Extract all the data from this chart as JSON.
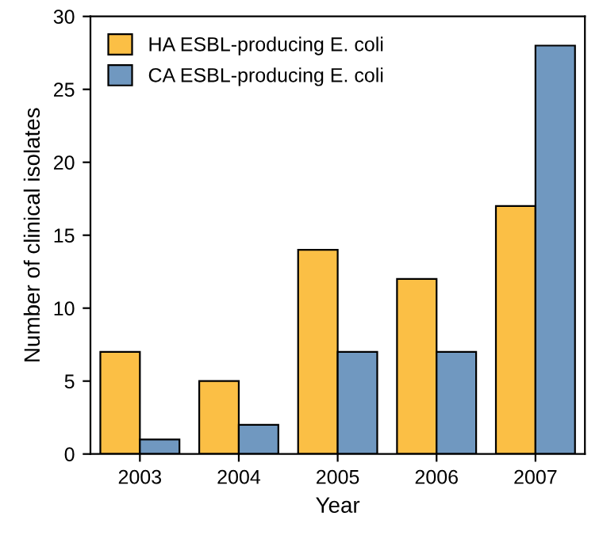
{
  "chart_data": {
    "type": "bar",
    "xlabel": "Year",
    "ylabel": "Number of clinical isolates",
    "categories": [
      "2003",
      "2004",
      "2005",
      "2006",
      "2007"
    ],
    "series": [
      {
        "name": "HA ESBL-producing E. coli",
        "color": "#fbbf45",
        "values": [
          7,
          5,
          14,
          12,
          17
        ]
      },
      {
        "name": "CA ESBL-producing E. coli",
        "color": "#7098c0",
        "values": [
          1,
          2,
          7,
          7,
          28
        ]
      }
    ],
    "ylim": [
      0,
      30
    ],
    "yticks": [
      0,
      5,
      10,
      15,
      20,
      25,
      30
    ],
    "grid": false,
    "legend": "top left"
  }
}
